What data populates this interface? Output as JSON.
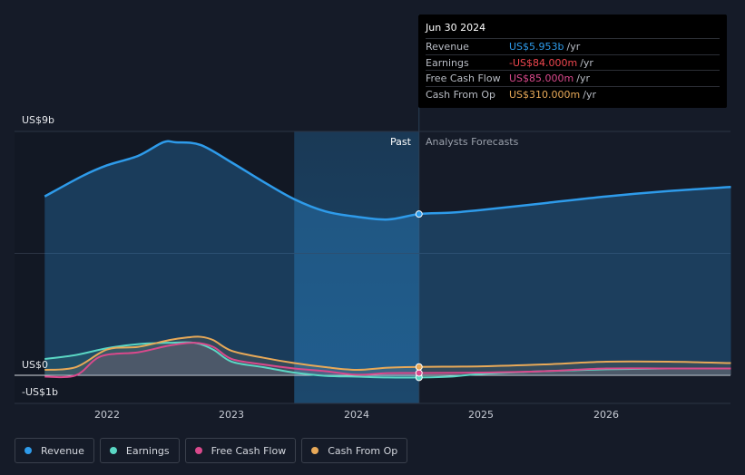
{
  "tooltip": {
    "date": "Jun 30 2024",
    "rows": [
      {
        "label": "Revenue",
        "value": "US$5.953b",
        "unit": "/yr",
        "color": "#2e9bea"
      },
      {
        "label": "Earnings",
        "value": "-US$84.000m",
        "unit": "/yr",
        "color": "#f0474f"
      },
      {
        "label": "Free Cash Flow",
        "value": "US$85.000m",
        "unit": "/yr",
        "color": "#d9498c"
      },
      {
        "label": "Cash From Op",
        "value": "US$310.000m",
        "unit": "/yr",
        "color": "#e8a958"
      }
    ]
  },
  "regions": {
    "past": "Past",
    "forecast": "Analysts Forecasts"
  },
  "legend": [
    {
      "label": "Revenue",
      "color": "#2e9bea"
    },
    {
      "label": "Earnings",
      "color": "#5ad7c4"
    },
    {
      "label": "Free Cash Flow",
      "color": "#d9498c"
    },
    {
      "label": "Cash From Op",
      "color": "#e8a958"
    }
  ],
  "chart_data": {
    "type": "area",
    "y_tick_labels": [
      "US$9b",
      "US$0",
      "-US$1b"
    ],
    "ylim": [
      -1,
      9
    ],
    "x_tick_labels": [
      "2022",
      "2023",
      "2024",
      "2025",
      "2026"
    ],
    "xlim": [
      2021.5,
      2027.0
    ],
    "past_end": 2024.5,
    "shaded_past_start": 2023.5,
    "series": [
      {
        "name": "Revenue",
        "color": "#2e9bea",
        "x": [
          2021.5,
          2021.8,
          2022.0,
          2022.25,
          2022.45,
          2022.55,
          2022.75,
          2023.0,
          2023.25,
          2023.5,
          2023.75,
          2024.0,
          2024.25,
          2024.5,
          2024.75,
          2025.0,
          2025.5,
          2026.0,
          2026.5,
          2027.0
        ],
        "y": [
          6.6,
          7.35,
          7.75,
          8.1,
          8.6,
          8.6,
          8.5,
          7.85,
          7.15,
          6.5,
          6.05,
          5.85,
          5.75,
          5.95,
          6.0,
          6.1,
          6.35,
          6.6,
          6.8,
          6.95
        ]
      },
      {
        "name": "Earnings",
        "color": "#5ad7c4",
        "x": [
          2021.5,
          2021.75,
          2022.0,
          2022.25,
          2022.5,
          2022.7,
          2022.85,
          2023.0,
          2023.25,
          2023.5,
          2023.75,
          2024.0,
          2024.25,
          2024.5,
          2024.75,
          2025.0,
          2025.5,
          2026.0,
          2026.5,
          2027.0
        ],
        "y": [
          0.6,
          0.75,
          1.0,
          1.15,
          1.2,
          1.2,
          0.95,
          0.5,
          0.3,
          0.1,
          -0.02,
          -0.05,
          -0.08,
          -0.08,
          -0.05,
          0.05,
          0.15,
          0.22,
          0.25,
          0.25
        ]
      },
      {
        "name": "Free Cash Flow",
        "color": "#d9498c",
        "x": [
          2021.5,
          2021.75,
          2021.95,
          2022.25,
          2022.5,
          2022.7,
          2022.85,
          2023.0,
          2023.25,
          2023.5,
          2023.75,
          2024.0,
          2024.25,
          2024.5,
          2025.0,
          2025.5,
          2026.0,
          2026.5,
          2027.0
        ],
        "y": [
          -0.05,
          0.0,
          0.7,
          0.85,
          1.1,
          1.2,
          1.05,
          0.6,
          0.4,
          0.25,
          0.15,
          0.02,
          0.08,
          0.085,
          0.1,
          0.15,
          0.25,
          0.25,
          0.25
        ]
      },
      {
        "name": "Cash From Op",
        "color": "#e8a958",
        "x": [
          2021.5,
          2021.75,
          2022.0,
          2022.25,
          2022.5,
          2022.65,
          2022.75,
          2022.85,
          2023.0,
          2023.25,
          2023.5,
          2023.75,
          2024.0,
          2024.25,
          2024.5,
          2025.0,
          2025.5,
          2026.0,
          2026.5,
          2027.0
        ],
        "y": [
          0.2,
          0.3,
          0.95,
          1.05,
          1.3,
          1.4,
          1.42,
          1.3,
          0.9,
          0.65,
          0.45,
          0.3,
          0.2,
          0.28,
          0.31,
          0.33,
          0.4,
          0.5,
          0.5,
          0.45
        ]
      }
    ]
  }
}
